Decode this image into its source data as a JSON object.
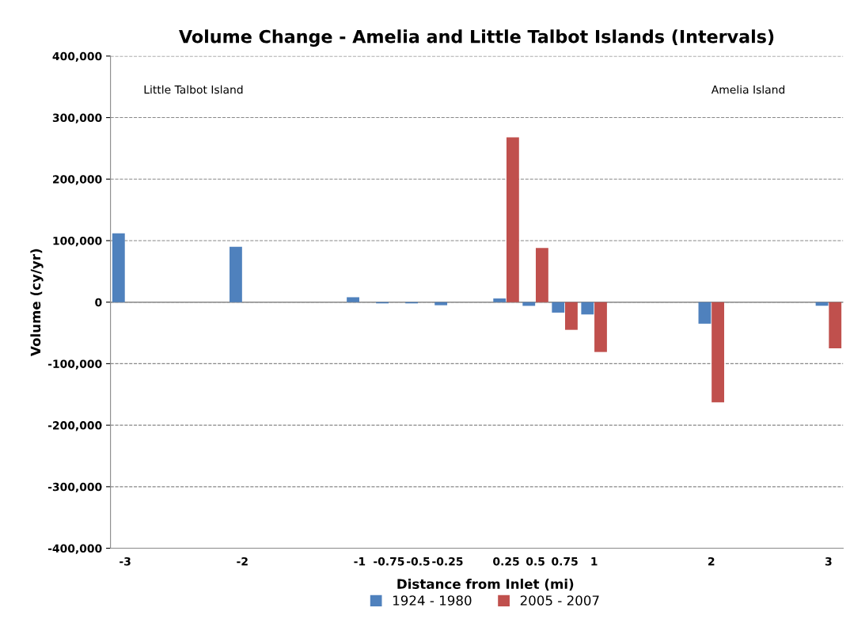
{
  "chart_data": {
    "type": "bar",
    "title": "Volume Change - Amelia and Little Talbot Islands (Intervals)",
    "xlabel": "Distance from Inlet (mi)",
    "ylabel": "Volume (cy/yr)",
    "categories": [
      "-3",
      null,
      null,
      null,
      "-2",
      null,
      null,
      null,
      "-1",
      "-0.75",
      "-0.5",
      "-0.25",
      null,
      "0.25",
      "0.5",
      "0.75",
      "1",
      null,
      null,
      null,
      "2",
      null,
      null,
      null,
      "3"
    ],
    "series": [
      {
        "name": "1924 - 1980",
        "color": "#4f81bd",
        "values": [
          112000,
          null,
          null,
          null,
          90000,
          null,
          null,
          null,
          8000,
          -2000,
          -2000,
          -5000,
          null,
          6000,
          -6000,
          -17000,
          -20000,
          null,
          null,
          null,
          -35000,
          null,
          null,
          null,
          -6000
        ]
      },
      {
        "name": "2005 - 2007",
        "color": "#c0504d",
        "values": [
          null,
          null,
          null,
          null,
          null,
          null,
          null,
          null,
          null,
          null,
          null,
          null,
          null,
          268000,
          88000,
          -45000,
          -81000,
          null,
          null,
          null,
          -163000,
          null,
          null,
          null,
          -75000
        ]
      }
    ],
    "ylim": [
      -400000,
      400000
    ],
    "yticks": [
      {
        "value": -400000,
        "label": "-400,000"
      },
      {
        "value": -300000,
        "label": "-300,000"
      },
      {
        "value": -200000,
        "label": "-200,000"
      },
      {
        "value": -100000,
        "label": "-100,000"
      },
      0,
      {
        "value": 100000,
        "label": "100,000"
      },
      {
        "value": 200000,
        "label": "200,000"
      },
      {
        "value": 300000,
        "label": "300,000"
      },
      {
        "value": 400000,
        "label": "400,000"
      }
    ],
    "grid": "y",
    "legend": "bottom",
    "annotations": [
      "Little Talbot Island",
      "Amelia Island"
    ]
  }
}
